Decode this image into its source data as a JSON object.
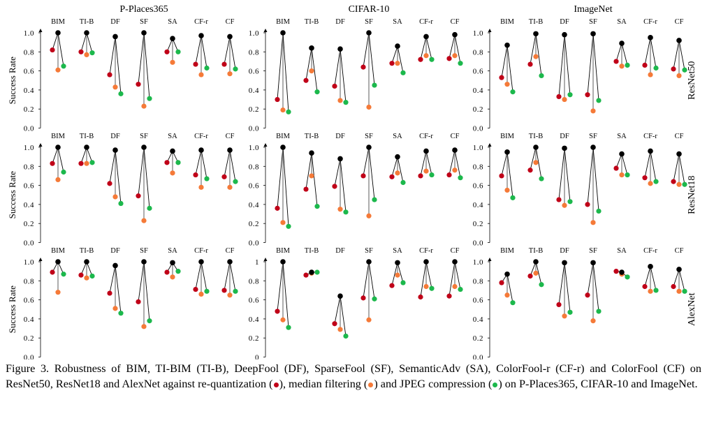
{
  "figure": {
    "caption_parts": [
      "Figure 3. Robustness of BIM, TI-BIM (TI-B), DeepFool (DF), SparseFool (SF), SemanticAdv (SA), ColorFool-r (CF-r) and ColorFool (CF) on ResNet50, ResNet18 and AlexNet against re-quantization (",
      "), median filtering (",
      ") and JPEG compression (",
      ") on P-Places365, CIFAR-10 and ImageNet."
    ],
    "column_titles": [
      "P-Places365",
      "CIFAR-10",
      "ImageNet"
    ],
    "row_labels": [
      "ResNet50",
      "ResNet18",
      "AlexNet"
    ],
    "ylabel": "Success Rate",
    "attacks": [
      "BIM",
      "TI-B",
      "DF",
      "SF",
      "SA",
      "CF-r",
      "CF"
    ],
    "colors": {
      "original": "#000000",
      "re_quantization": "#c00018",
      "median_filtering": "#f57a38",
      "jpeg_compression": "#1cb84c",
      "orange_stem": "#8a8a8a"
    }
  },
  "chart_data": [
    {
      "type": "scatter",
      "dataset": "P-Places365",
      "model": "ResNet50",
      "yticks": [
        "0.0",
        "0.2",
        "0.4",
        "0.6",
        "0.8",
        "1.0"
      ],
      "ylim": [
        0,
        1
      ],
      "original": [
        1.0,
        1.0,
        0.96,
        1.0,
        0.94,
        0.97,
        0.96
      ],
      "re_quantization": [
        0.82,
        0.8,
        0.56,
        0.46,
        0.8,
        0.67,
        0.67
      ],
      "median_filtering": [
        0.61,
        0.77,
        0.43,
        0.23,
        0.69,
        0.56,
        0.57
      ],
      "jpeg_compression": [
        0.65,
        0.79,
        0.36,
        0.31,
        0.8,
        0.63,
        0.62
      ]
    },
    {
      "type": "scatter",
      "dataset": "CIFAR-10",
      "model": "ResNet50",
      "yticks": [
        "0.0",
        "0.2",
        "0.4",
        "0.6",
        "0.8",
        "1.0"
      ],
      "ylim": [
        0,
        1
      ],
      "original": [
        1.0,
        0.84,
        0.83,
        1.0,
        0.86,
        0.96,
        0.98
      ],
      "re_quantization": [
        0.3,
        0.5,
        0.44,
        0.64,
        0.68,
        0.72,
        0.73
      ],
      "median_filtering": [
        0.19,
        0.6,
        0.29,
        0.22,
        0.68,
        0.76,
        0.76
      ],
      "jpeg_compression": [
        0.17,
        0.38,
        0.27,
        0.45,
        0.58,
        0.72,
        0.68
      ]
    },
    {
      "type": "scatter",
      "dataset": "ImageNet",
      "model": "ResNet50",
      "yticks": [
        "0.0",
        "0.2",
        "0.4",
        "0.6",
        "0.8",
        "1.0"
      ],
      "ylim": [
        0,
        1
      ],
      "original": [
        0.87,
        0.99,
        0.98,
        0.99,
        0.89,
        0.95,
        0.92
      ],
      "re_quantization": [
        0.53,
        0.67,
        0.33,
        0.35,
        0.7,
        0.66,
        0.62
      ],
      "median_filtering": [
        0.46,
        0.75,
        0.3,
        0.18,
        0.65,
        0.56,
        0.55
      ],
      "jpeg_compression": [
        0.38,
        0.55,
        0.35,
        0.29,
        0.66,
        0.63,
        0.61
      ]
    },
    {
      "type": "scatter",
      "dataset": "P-Places365",
      "model": "ResNet18",
      "yticks": [
        "0.0",
        "0.2",
        "0.4",
        "0.6",
        "0.8",
        "1.0"
      ],
      "ylim": [
        0,
        1
      ],
      "original": [
        1.0,
        1.0,
        0.97,
        1.0,
        0.96,
        0.97,
        0.97
      ],
      "re_quantization": [
        0.83,
        0.83,
        0.62,
        0.49,
        0.84,
        0.71,
        0.69
      ],
      "median_filtering": [
        0.66,
        0.83,
        0.48,
        0.23,
        0.73,
        0.58,
        0.58
      ],
      "jpeg_compression": [
        0.74,
        0.84,
        0.41,
        0.36,
        0.84,
        0.67,
        0.64
      ]
    },
    {
      "type": "scatter",
      "dataset": "CIFAR-10",
      "model": "ResNet18",
      "yticks": [
        "0.0",
        "0.2",
        "0.4",
        "0.6",
        "0.8",
        "1.0"
      ],
      "ylim": [
        0,
        1
      ],
      "original": [
        1.0,
        0.94,
        0.88,
        1.0,
        0.9,
        0.96,
        0.97
      ],
      "re_quantization": [
        0.36,
        0.56,
        0.59,
        0.7,
        0.69,
        0.7,
        0.71
      ],
      "median_filtering": [
        0.21,
        0.7,
        0.35,
        0.28,
        0.73,
        0.75,
        0.76
      ],
      "jpeg_compression": [
        0.17,
        0.38,
        0.32,
        0.45,
        0.63,
        0.71,
        0.68
      ]
    },
    {
      "type": "scatter",
      "dataset": "ImageNet",
      "model": "ResNet18",
      "yticks": [
        "0.0",
        "0.2",
        "0.4",
        "0.6",
        "0.8",
        "1.0"
      ],
      "ylim": [
        0,
        1
      ],
      "original": [
        0.95,
        1.0,
        0.99,
        1.0,
        0.93,
        0.96,
        0.93
      ],
      "re_quantization": [
        0.7,
        0.76,
        0.45,
        0.4,
        0.78,
        0.68,
        0.64
      ],
      "median_filtering": [
        0.55,
        0.84,
        0.39,
        0.21,
        0.71,
        0.62,
        0.61
      ],
      "jpeg_compression": [
        0.47,
        0.67,
        0.43,
        0.33,
        0.71,
        0.64,
        0.61
      ]
    },
    {
      "type": "scatter",
      "dataset": "P-Places365",
      "model": "AlexNet",
      "yticks": [
        "0.0",
        "0.2",
        "0.4",
        "0.6",
        "0.8",
        "1.0"
      ],
      "ylim": [
        0,
        1
      ],
      "original": [
        1.0,
        1.0,
        0.96,
        1.0,
        0.99,
        1.0,
        1.0
      ],
      "re_quantization": [
        0.89,
        0.86,
        0.67,
        0.58,
        0.89,
        0.71,
        0.7
      ],
      "median_filtering": [
        0.68,
        0.83,
        0.51,
        0.32,
        0.84,
        0.66,
        0.65
      ],
      "jpeg_compression": [
        0.87,
        0.85,
        0.46,
        0.38,
        0.9,
        0.69,
        0.69
      ]
    },
    {
      "type": "scatter",
      "dataset": "CIFAR-10",
      "model": "AlexNet",
      "yticks": [
        "0",
        "0.2",
        "0.4",
        "0.6",
        "0.8",
        "1"
      ],
      "ylim": [
        0,
        1
      ],
      "original": [
        1.0,
        0.89,
        0.64,
        1.0,
        0.99,
        1.0,
        1.0
      ],
      "re_quantization": [
        0.48,
        0.86,
        0.35,
        0.62,
        0.75,
        0.63,
        0.64
      ],
      "median_filtering": [
        0.39,
        0.88,
        0.29,
        0.39,
        0.86,
        0.74,
        0.74
      ],
      "jpeg_compression": [
        0.31,
        0.89,
        0.22,
        0.61,
        0.78,
        0.72,
        0.71
      ]
    },
    {
      "type": "scatter",
      "dataset": "ImageNet",
      "model": "AlexNet",
      "yticks": [
        "0.0",
        "0.2",
        "0.4",
        "0.6",
        "0.8",
        "1.0"
      ],
      "ylim": [
        0,
        1
      ],
      "original": [
        0.87,
        1.0,
        0.99,
        0.99,
        0.89,
        0.95,
        0.92
      ],
      "re_quantization": [
        0.78,
        0.85,
        0.55,
        0.65,
        0.9,
        0.74,
        0.74
      ],
      "median_filtering": [
        0.65,
        0.88,
        0.43,
        0.38,
        0.87,
        0.69,
        0.69
      ],
      "jpeg_compression": [
        0.57,
        0.76,
        0.47,
        0.48,
        0.84,
        0.7,
        0.69
      ]
    }
  ]
}
